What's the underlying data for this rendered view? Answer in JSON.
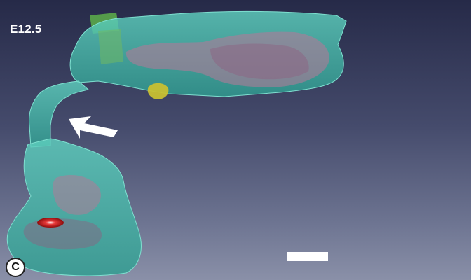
{
  "figure": {
    "stage_label": "E12.5",
    "panel_letter": "C",
    "colors": {
      "background": "#3c4160",
      "tissue_surface": "#45b8a8",
      "internal_structure": "#b07a98",
      "marker_green": "#5aa84a",
      "marker_yellow": "#c8c032",
      "marker_red": "#c41a1a",
      "arrow": "#ffffff",
      "scale_bar": "#ffffff"
    }
  }
}
